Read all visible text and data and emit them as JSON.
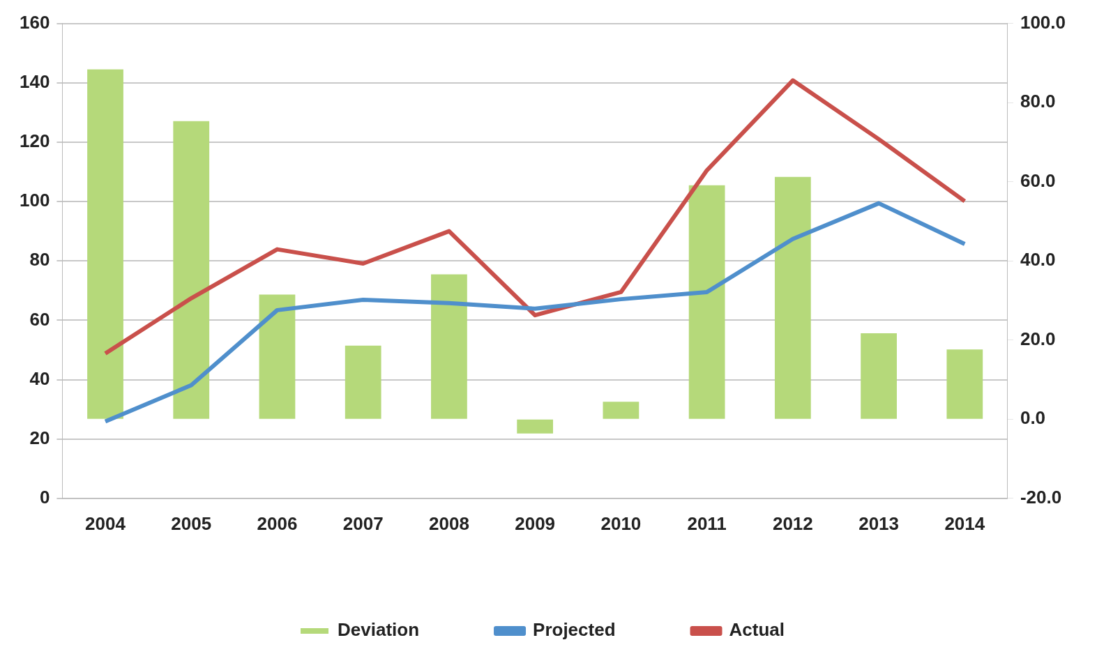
{
  "chart_data": {
    "type": "bar",
    "categories": [
      "2004",
      "2005",
      "2006",
      "2007",
      "2008",
      "2009",
      "2010",
      "2011",
      "2012",
      "2013",
      "2014"
    ],
    "series": [
      {
        "name": "Deviation",
        "axis": "y2",
        "color": "#b5d97a",
        "values": [
          88.4,
          75.3,
          31.5,
          18.6,
          36.6,
          -3.6,
          4.4,
          59.1,
          61.2,
          21.7,
          17.6
        ]
      },
      {
        "name": "Projected",
        "type": "line",
        "color": "#4f8fcc",
        "values": [
          25.9,
          38.1,
          63.4,
          66.9,
          65.8,
          63.9,
          67.1,
          69.5,
          87.4,
          99.4,
          85.7
        ]
      },
      {
        "name": "Actual",
        "type": "line",
        "color": "#c9504b",
        "values": [
          48.8,
          67.4,
          83.9,
          79.1,
          90.0,
          61.7,
          69.5,
          110.5,
          140.8,
          121.0,
          100.1
        ]
      }
    ],
    "ylim": [
      0,
      160
    ],
    "yticks": [
      0,
      20,
      40,
      60,
      80,
      100,
      120,
      140,
      160
    ],
    "y2lim": [
      -20,
      100
    ],
    "y2ticks": [
      {
        "value": -20,
        "label": "-20.0"
      },
      {
        "value": 0,
        "label": "0.0"
      },
      {
        "value": 20,
        "label": "20.0"
      },
      {
        "value": 40,
        "label": "40.0"
      },
      {
        "value": 60,
        "label": "60.0"
      },
      {
        "value": 80,
        "label": "80.0"
      },
      {
        "value": 100,
        "label": "100.0"
      }
    ],
    "grid": "y",
    "legend": "bottom",
    "marker": "none"
  }
}
